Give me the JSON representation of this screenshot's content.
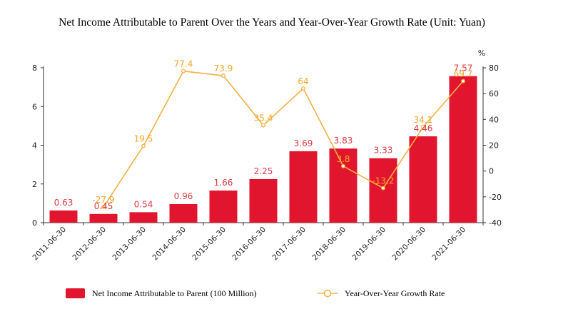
{
  "chart_data": {
    "type": "bar+line",
    "title": "Net Income Attributable to Parent Over the Years and Year-Over-Year Growth Rate (Unit: Yuan)",
    "categories": [
      "2011-06-30",
      "2012-06-30",
      "2013-06-30",
      "2014-06-30",
      "2015-06-30",
      "2016-06-30",
      "2017-06-30",
      "2018-06-30",
      "2019-06-30",
      "2020-06-30",
      "2021-06-30"
    ],
    "series": [
      {
        "name": "Net Income Attributable to Parent (100 Million)",
        "type": "bar",
        "axis": "left",
        "color": "#e2152e",
        "values": [
          0.63,
          0.45,
          0.54,
          0.96,
          1.66,
          2.25,
          3.69,
          3.83,
          3.33,
          4.46,
          7.57
        ],
        "labels": [
          "0.63",
          "0.45",
          "0.54",
          "0.96",
          "1.66",
          "2.25",
          "3.69",
          "3.83",
          "3.33",
          "4.46",
          "7.57"
        ]
      },
      {
        "name": "Year-Over-Year Growth Rate",
        "type": "line",
        "axis": "right",
        "color": "#f5b041",
        "values": [
          null,
          -27.9,
          19.5,
          77.4,
          73.9,
          35.4,
          64,
          3.8,
          -13.2,
          34.1,
          69.7
        ],
        "labels": [
          "",
          "-27.9",
          "19.5",
          "77.4",
          "73.9",
          "35.4",
          "64",
          "3.8",
          "-13.2",
          "34.1",
          "69.7"
        ]
      }
    ],
    "y_left": {
      "min": 0,
      "max": 8,
      "ticks": [
        "0",
        "2",
        "4",
        "6",
        "8"
      ]
    },
    "y_right": {
      "min": -40,
      "max": 80,
      "ticks": [
        "-40",
        "-20",
        "0",
        "20",
        "40",
        "60",
        "80"
      ],
      "unit": "%"
    },
    "legend_position": "bottom",
    "grid": false
  }
}
